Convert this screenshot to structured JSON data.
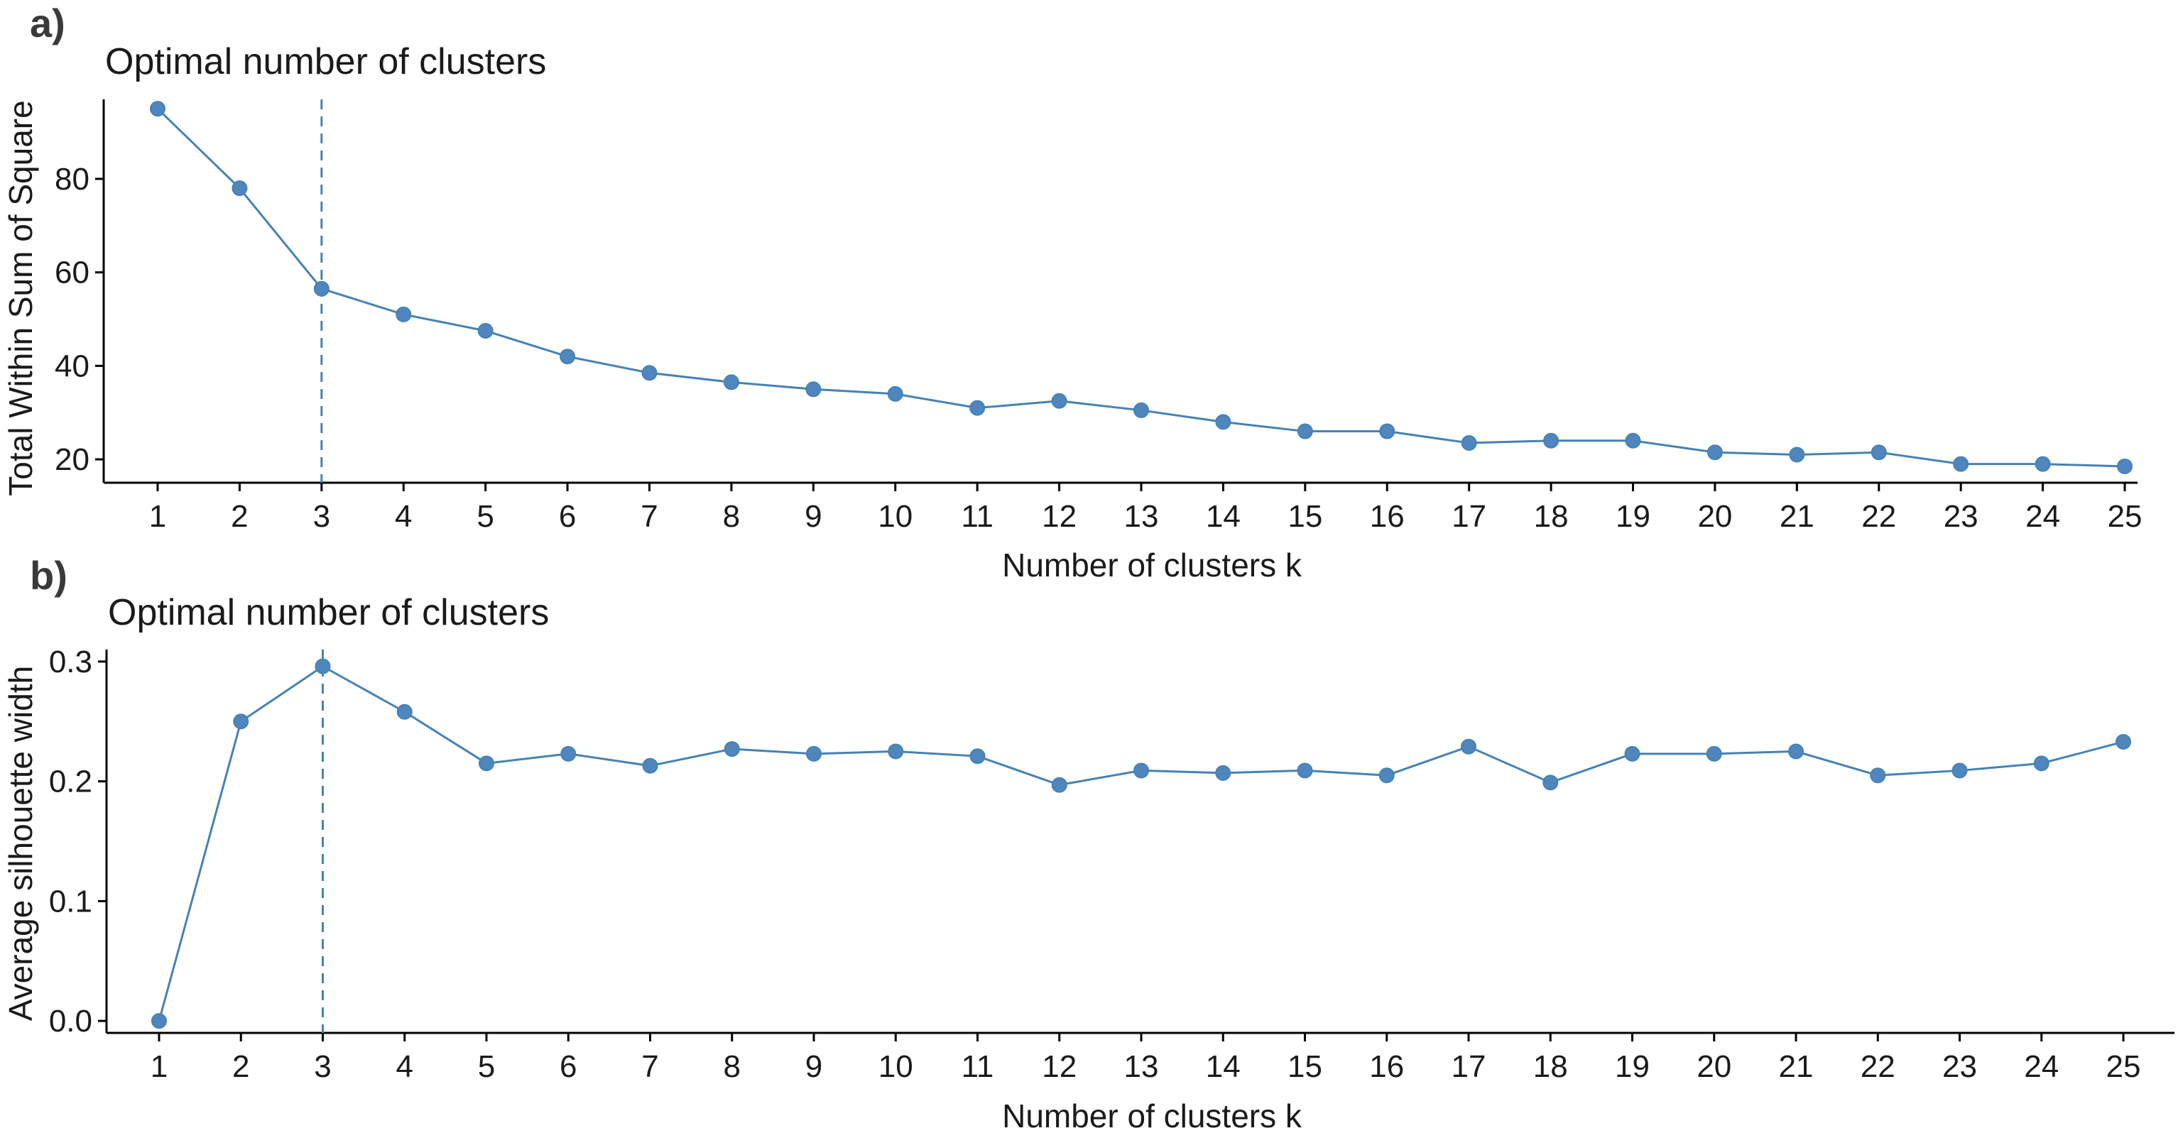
{
  "figure": {
    "panels": [
      {
        "label": "a)",
        "chart_data": {
          "type": "line",
          "title": "Optimal number of clusters",
          "xlabel": "Number of clusters k",
          "ylabel": "Total Within Sum of Square",
          "categories": [
            "1",
            "2",
            "3",
            "4",
            "5",
            "6",
            "7",
            "8",
            "9",
            "10",
            "11",
            "12",
            "13",
            "14",
            "15",
            "16",
            "17",
            "18",
            "19",
            "20",
            "21",
            "22",
            "23",
            "24",
            "25"
          ],
          "values": [
            95,
            78,
            56.5,
            51,
            47.5,
            42,
            38.5,
            36.5,
            35,
            34,
            31,
            32.5,
            30.5,
            28,
            26,
            26,
            23.5,
            24,
            24,
            21.5,
            21,
            21.5,
            19,
            19,
            18.5
          ],
          "yticks": [
            20,
            40,
            60,
            80
          ],
          "ytick_labels": [
            "20",
            "40",
            "60",
            "80"
          ],
          "ylim": [
            15,
            97
          ],
          "optimal_k": 3,
          "grid": false,
          "legend": "none"
        }
      },
      {
        "label": "b)",
        "chart_data": {
          "type": "line",
          "title": "Optimal number of clusters",
          "xlabel": "Number of clusters k",
          "ylabel": "Average silhouette width",
          "categories": [
            "1",
            "2",
            "3",
            "4",
            "5",
            "6",
            "7",
            "8",
            "9",
            "10",
            "11",
            "12",
            "13",
            "14",
            "15",
            "16",
            "17",
            "18",
            "19",
            "20",
            "21",
            "22",
            "23",
            "24",
            "25"
          ],
          "values": [
            0.0,
            0.25,
            0.296,
            0.258,
            0.215,
            0.223,
            0.213,
            0.227,
            0.223,
            0.225,
            0.221,
            0.197,
            0.209,
            0.207,
            0.209,
            0.205,
            0.229,
            0.199,
            0.223,
            0.223,
            0.225,
            0.205,
            0.209,
            0.215,
            0.233
          ],
          "yticks": [
            0.0,
            0.1,
            0.2,
            0.3
          ],
          "ytick_labels": [
            "0.0",
            "0.1",
            "0.2",
            "0.3"
          ],
          "ylim": [
            -0.01,
            0.31
          ],
          "optimal_k": 3,
          "grid": false,
          "legend": "none"
        }
      }
    ],
    "colors": {
      "series": "#4682b4",
      "point_fill": "#4f86bd",
      "axis": "#000000"
    }
  }
}
